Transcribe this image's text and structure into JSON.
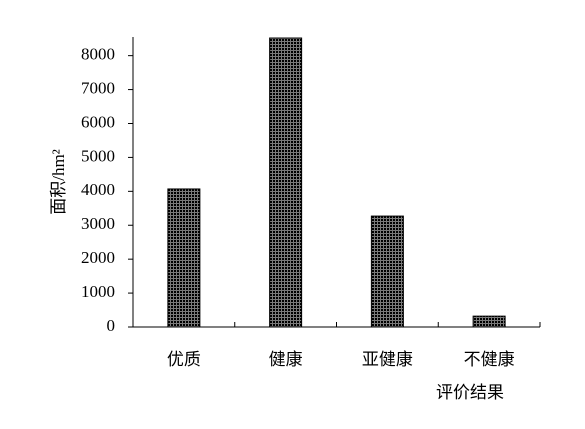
{
  "chart_data": {
    "type": "bar",
    "y_label": "面积/hm²",
    "x_label": "评价结果",
    "categories": [
      "优质",
      "健康",
      "亚健康",
      "不健康"
    ],
    "values": [
      4070,
      8520,
      3270,
      320
    ],
    "color": "#7a7a7a",
    "ylim": [
      0,
      8550
    ],
    "yticks": [
      0,
      1000,
      2000,
      3000,
      4000,
      5000,
      6000,
      7000,
      8000
    ],
    "grid": false
  }
}
